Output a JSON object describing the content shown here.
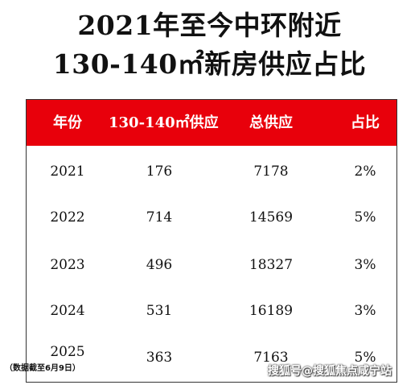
{
  "title": {
    "line1": "2021年至今中环附近",
    "line2": "130-140㎡新房供应占比"
  },
  "table": {
    "headers": [
      "年份",
      "130-140㎡供应",
      "总供应",
      "占比"
    ],
    "rows": [
      [
        "2021",
        "176",
        "7178",
        "2%"
      ],
      [
        "2022",
        "714",
        "14569",
        "5%"
      ],
      [
        "2023",
        "496",
        "18327",
        "3%"
      ],
      [
        "2024",
        "531",
        "16189",
        "3%"
      ],
      [
        "2025",
        "363",
        "7163",
        "5%"
      ]
    ]
  },
  "note": "（数据截至6月9日）",
  "watermark": "搜狐号@搜狐焦点咸宁站",
  "colors": {
    "header_bg": "#e8000b",
    "header_text": "#ffffff"
  }
}
